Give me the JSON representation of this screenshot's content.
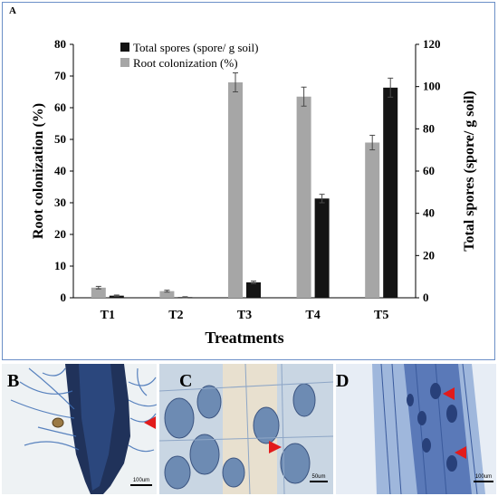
{
  "panels": {
    "a": "A",
    "b": "B",
    "c": "C",
    "d": "D"
  },
  "scale_labels": {
    "b": "100um",
    "c": "50um",
    "d": "100um"
  },
  "colors": {
    "spores": "#141414",
    "colonization": "#a6a6a6",
    "error": "#4a4a4a",
    "frame": "#6b8fc7",
    "arrow": "#e21b1b"
  },
  "chart_data": {
    "type": "bar",
    "categories": [
      "T1",
      "T2",
      "T3",
      "T4",
      "T5"
    ],
    "xlabel": "Treatments",
    "y_left": {
      "label": "Root colonization (%)",
      "lim": [
        0,
        80
      ],
      "ticks": [
        0,
        10,
        20,
        30,
        40,
        50,
        60,
        70,
        80
      ]
    },
    "y_right": {
      "label": "Total spores (spore/ g soil)",
      "lim": [
        0,
        120
      ],
      "ticks": [
        0,
        20,
        40,
        60,
        80,
        100,
        120
      ]
    },
    "series": [
      {
        "name": "Root colonization (%)",
        "axis": "left",
        "values": [
          3.2,
          2.1,
          68,
          63.5,
          49
        ],
        "errors": [
          0.4,
          0.3,
          3,
          3,
          2.3
        ]
      },
      {
        "name": "Total spores (spore/ g soil)",
        "axis": "right",
        "values": [
          1,
          0.3,
          7.3,
          47,
          99.5
        ],
        "errors": [
          0.3,
          0.2,
          0.6,
          2,
          4.5
        ]
      }
    ],
    "legend": {
      "placement": "top-center",
      "entries": [
        "Total spores (spore/ g soil)",
        "Root colonization (%)"
      ]
    },
    "grid": false
  }
}
